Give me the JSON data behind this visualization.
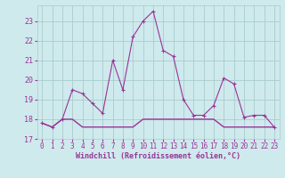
{
  "xlabel": "Windchill (Refroidissement éolien,°C)",
  "background_color": "#ceeaec",
  "grid_color": "#aacccc",
  "line_color": "#993399",
  "line2_color": "#993399",
  "x_values": [
    0,
    1,
    2,
    3,
    4,
    5,
    6,
    7,
    8,
    9,
    10,
    11,
    12,
    13,
    14,
    15,
    16,
    17,
    18,
    19,
    20,
    21,
    22,
    23
  ],
  "y_values": [
    17.8,
    17.6,
    18.0,
    19.5,
    19.3,
    18.8,
    18.3,
    21.0,
    19.5,
    22.2,
    23.0,
    23.5,
    21.5,
    21.2,
    19.0,
    18.2,
    18.2,
    18.7,
    20.1,
    19.8,
    18.1,
    18.2,
    18.2,
    17.6
  ],
  "y2_values": [
    17.8,
    17.6,
    18.0,
    18.0,
    17.6,
    17.6,
    17.6,
    17.6,
    17.6,
    17.6,
    18.0,
    18.0,
    18.0,
    18.0,
    18.0,
    18.0,
    18.0,
    18.0,
    17.6,
    17.6,
    17.6,
    17.6,
    17.6,
    17.6
  ],
  "ylim": [
    17.0,
    23.8
  ],
  "yticks": [
    17,
    18,
    19,
    20,
    21,
    22,
    23
  ],
  "xlim": [
    -0.5,
    23.5
  ],
  "xticks": [
    0,
    1,
    2,
    3,
    4,
    5,
    6,
    7,
    8,
    9,
    10,
    11,
    12,
    13,
    14,
    15,
    16,
    17,
    18,
    19,
    20,
    21,
    22,
    23
  ],
  "tick_fontsize": 5.5,
  "xlabel_fontsize": 6.0,
  "marker_size": 3
}
